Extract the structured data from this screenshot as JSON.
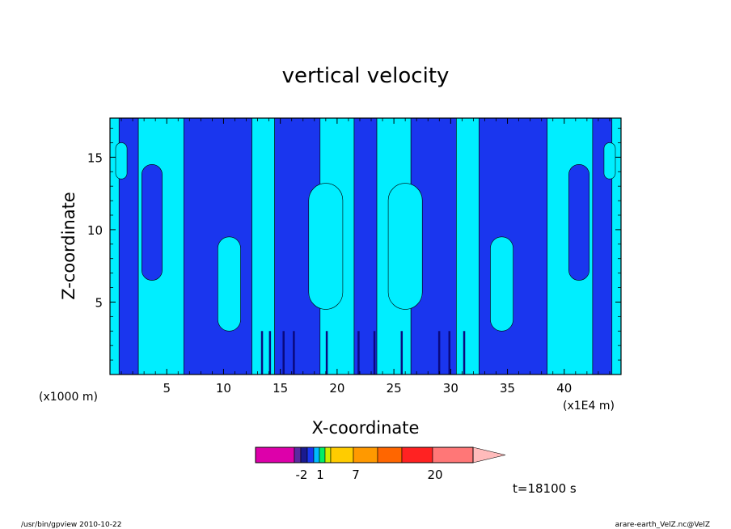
{
  "colors": {
    "cyan": "#00eeff",
    "blue": "#1a36ee",
    "navy": "#0a0a80",
    "bar": [
      "#dd00aa",
      "#5a2aa0",
      "#1a1a90",
      "#1a36ee",
      "#00bbff",
      "#00ee66",
      "#ccee00",
      "#ffcc00",
      "#ff9900",
      "#ff6600",
      "#ff2222",
      "#ff7777",
      "#ffbbbb"
    ]
  },
  "chart_data": {
    "type": "heatmap",
    "title": "vertical velocity",
    "xlabel": "X-coordinate",
    "ylabel": "Z-coordinate",
    "x_unit": "(x1000 m)",
    "x_unit2": "(x1E4 m)",
    "xlim": [
      0,
      45
    ],
    "ylim": [
      0,
      17.7
    ],
    "x_ticks": [
      5,
      10,
      15,
      20,
      25,
      30,
      35,
      40
    ],
    "y_ticks": [
      5,
      10,
      15
    ],
    "colorbar": {
      "labels": [
        "-2",
        "1",
        "7",
        "20"
      ]
    },
    "columns": [
      {
        "x": [
          0.0,
          0.8
        ],
        "level": "cyan"
      },
      {
        "x": [
          0.8,
          2.5
        ],
        "level": "blue"
      },
      {
        "x": [
          2.5,
          6.5
        ],
        "level": "cyan"
      },
      {
        "x": [
          6.5,
          12.5
        ],
        "level": "blue"
      },
      {
        "x": [
          12.5,
          14.5
        ],
        "level": "cyan"
      },
      {
        "x": [
          14.5,
          18.5
        ],
        "level": "blue"
      },
      {
        "x": [
          18.5,
          21.5
        ],
        "level": "cyan"
      },
      {
        "x": [
          21.5,
          23.5
        ],
        "level": "blue"
      },
      {
        "x": [
          23.5,
          26.5
        ],
        "level": "cyan"
      },
      {
        "x": [
          26.5,
          30.5
        ],
        "level": "blue"
      },
      {
        "x": [
          30.5,
          32.5
        ],
        "level": "cyan"
      },
      {
        "x": [
          32.5,
          38.5
        ],
        "level": "blue"
      },
      {
        "x": [
          38.5,
          42.5
        ],
        "level": "cyan"
      },
      {
        "x": [
          42.5,
          44.2
        ],
        "level": "blue"
      },
      {
        "x": [
          44.2,
          45.0
        ],
        "level": "cyan"
      }
    ]
  },
  "annotation": "t=18100 s",
  "footer": {
    "left": "/usr/bin/gpview   2010-10-22",
    "right": "arare-earth_VelZ.nc@VelZ"
  }
}
